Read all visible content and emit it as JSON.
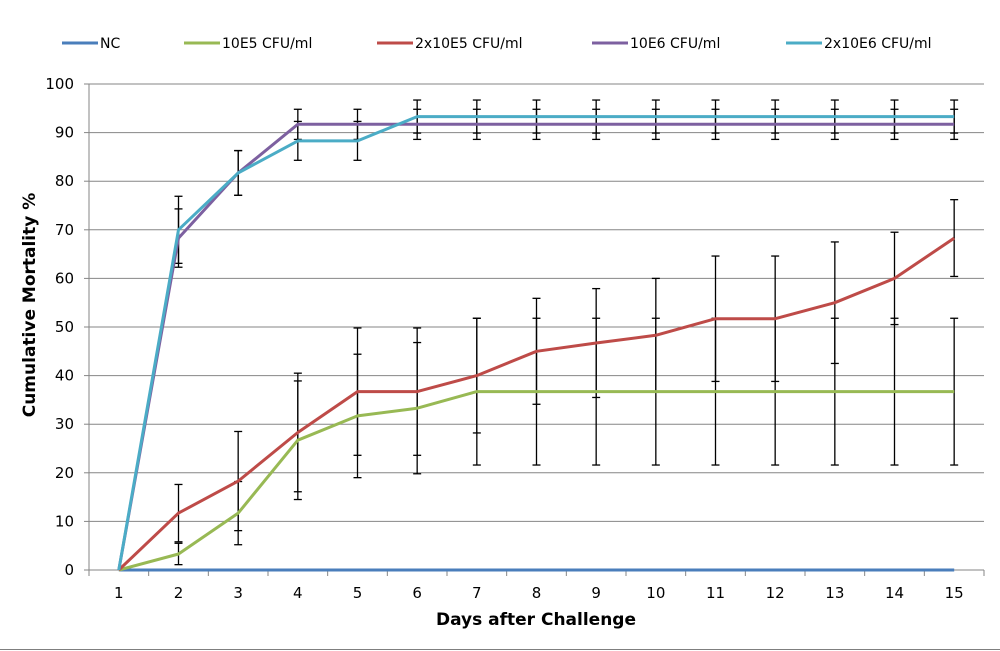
{
  "chart_data": {
    "type": "line",
    "xlabel": "Days after Challenge",
    "ylabel": "Cumulative Mortality %",
    "x": [
      1,
      2,
      3,
      4,
      5,
      6,
      7,
      8,
      9,
      10,
      11,
      12,
      13,
      14,
      15
    ],
    "xlim": [
      0.5,
      15.5
    ],
    "ylim": [
      0,
      100
    ],
    "yticks": [
      0,
      10,
      20,
      30,
      40,
      50,
      60,
      70,
      80,
      90,
      100
    ],
    "grid": "horizontal",
    "legend_position": "top",
    "series": [
      {
        "name": "NC",
        "color": "#4a7ebb",
        "values": [
          0,
          0,
          0,
          0,
          0,
          0,
          0,
          0,
          0,
          0,
          0,
          0,
          0,
          0,
          0
        ],
        "errors": [
          0,
          0,
          0,
          0,
          0,
          0,
          0,
          0,
          0,
          0,
          0,
          0,
          0,
          0,
          0
        ]
      },
      {
        "name": "10E5 CFU/ml",
        "color": "#98b954",
        "values": [
          0,
          3.3,
          11.7,
          26.7,
          31.7,
          33.3,
          36.7,
          36.7,
          36.7,
          36.7,
          36.7,
          36.7,
          36.7,
          36.7,
          36.7
        ],
        "errors": [
          0,
          2.2,
          6.5,
          12.2,
          12.7,
          13.5,
          15.1,
          15.1,
          15.1,
          15.1,
          15.1,
          15.1,
          15.1,
          15.1,
          15.1
        ]
      },
      {
        "name": "2x10E5 CFU/ml",
        "color": "#be4b48",
        "values": [
          0,
          11.7,
          18.3,
          28.3,
          36.7,
          36.7,
          40.0,
          45.0,
          46.7,
          48.3,
          51.7,
          51.7,
          55.0,
          60.0,
          68.3
        ],
        "errors": [
          0,
          5.9,
          10.2,
          12.2,
          13.1,
          13.1,
          11.8,
          10.9,
          11.2,
          11.7,
          12.9,
          12.9,
          12.5,
          9.5,
          7.9
        ]
      },
      {
        "name": "10E6 CFU/ml",
        "color": "#7d60a0",
        "values": [
          0,
          68.3,
          81.7,
          91.7,
          91.7,
          91.7,
          91.7,
          91.7,
          91.7,
          91.7,
          91.7,
          91.7,
          91.7,
          91.7,
          91.7
        ],
        "errors": [
          0,
          6.0,
          4.6,
          3.1,
          3.1,
          3.1,
          3.1,
          3.1,
          3.1,
          3.1,
          3.1,
          3.1,
          3.1,
          3.1,
          3.1
        ]
      },
      {
        "name": "2x10E6 CFU/ml",
        "color": "#4bacc6",
        "values": [
          0,
          70.0,
          81.7,
          88.3,
          88.3,
          93.3,
          93.3,
          93.3,
          93.3,
          93.3,
          93.3,
          93.3,
          93.3,
          93.3,
          93.3
        ],
        "errors": [
          0,
          6.9,
          4.6,
          4.0,
          4.0,
          3.4,
          3.4,
          3.4,
          3.4,
          3.4,
          3.4,
          3.4,
          3.4,
          3.4,
          3.4
        ]
      }
    ]
  }
}
